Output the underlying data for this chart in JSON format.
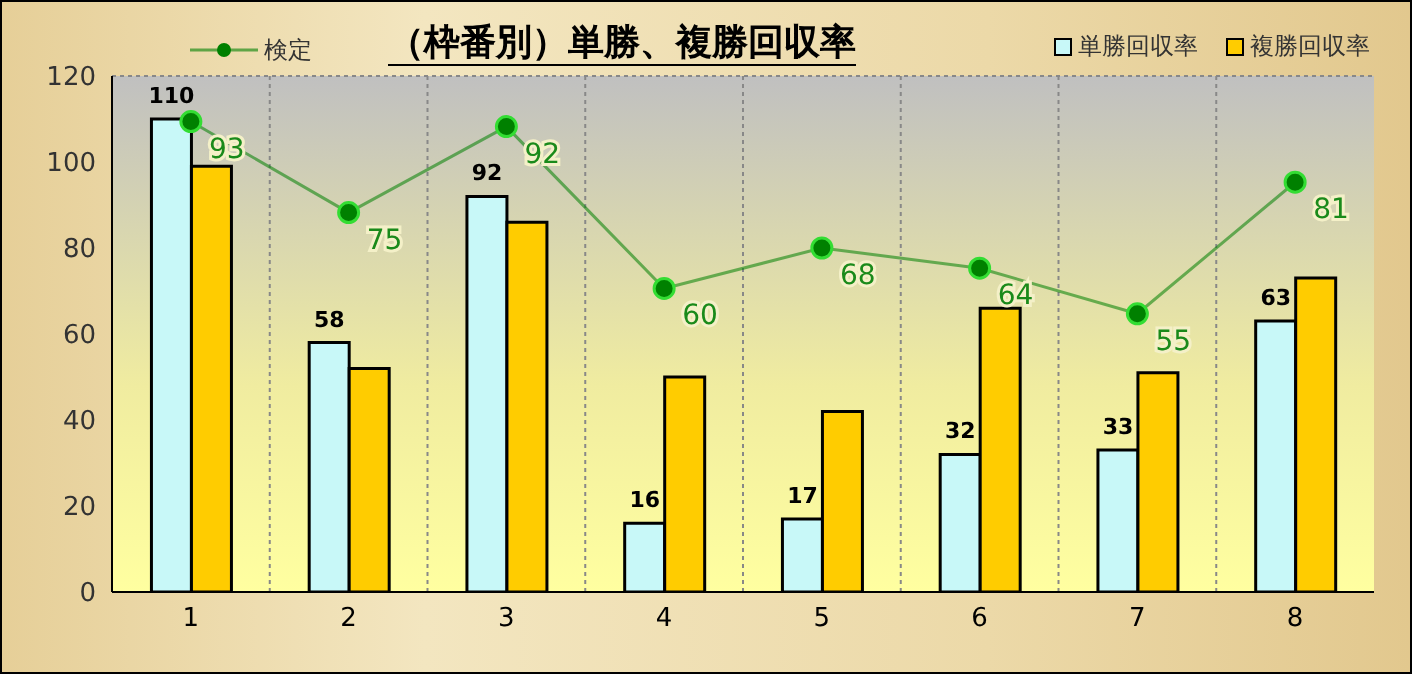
{
  "chart_data": {
    "type": "bar",
    "title": "（枠番別）単勝、複勝回収率",
    "categories": [
      "1",
      "2",
      "3",
      "4",
      "5",
      "6",
      "7",
      "8"
    ],
    "series": [
      {
        "name": "単勝回収率",
        "color": "#c8f8f8",
        "values": [
          110,
          58,
          92,
          16,
          17,
          32,
          33,
          63
        ],
        "value_labels": [
          "110",
          "58",
          "92",
          "16",
          "17",
          "32",
          "33",
          "63"
        ]
      },
      {
        "name": "複勝回収率",
        "color": "#ffcc00",
        "values": [
          99,
          52,
          86,
          50,
          42,
          66,
          51,
          73
        ]
      },
      {
        "name": "検定",
        "type": "line",
        "axis": "y2",
        "color": "#008000",
        "values": [
          93,
          75,
          92,
          60,
          68,
          64,
          55,
          81
        ],
        "value_labels": [
          "93",
          "75",
          "92",
          "60",
          "68",
          "64",
          "55",
          "81"
        ]
      }
    ],
    "ylim": [
      0,
      120
    ],
    "yticks": [
      0,
      20,
      40,
      60,
      80,
      100,
      120
    ],
    "y2lim": [
      0,
      102
    ],
    "grid": true,
    "legend": "top",
    "marker": "circle"
  }
}
